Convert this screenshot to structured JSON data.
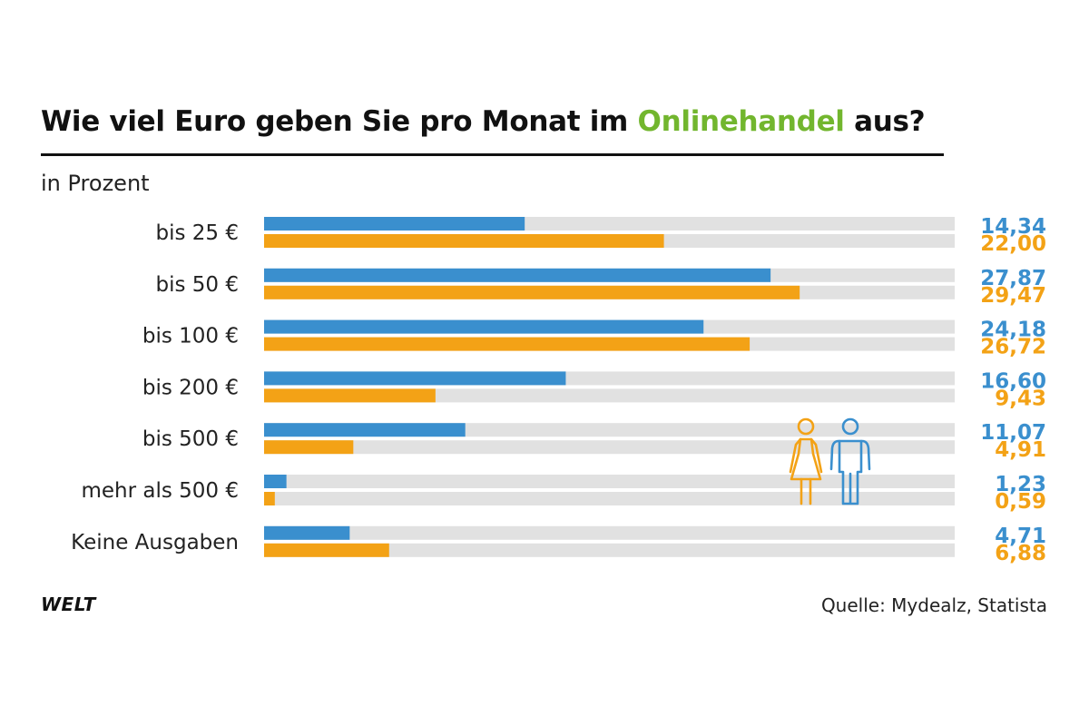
{
  "header": {
    "title_prefix": "Wie viel Euro geben Sie pro Monat im ",
    "title_highlight": "Onlinehandel",
    "title_suffix": " aus?",
    "subtitle": "in Prozent"
  },
  "colors": {
    "male": "#3a8fce",
    "female": "#f3a216",
    "track": "#e1e1e1",
    "highlight": "#72b62e"
  },
  "icons": [
    "woman-icon",
    "man-icon"
  ],
  "footer": {
    "logo": "WELT",
    "source": "Quelle: Mydealz, Statista"
  },
  "chart_data": {
    "type": "bar",
    "orientation": "horizontal",
    "title": "Wie viel Euro geben Sie pro Monat im Onlinehandel aus?",
    "subtitle": "in Prozent",
    "xlim": [
      0,
      38
    ],
    "grid": false,
    "categories": [
      "bis 25 €",
      "bis 50 €",
      "bis 100 €",
      "bis 200 €",
      "bis 500 €",
      "mehr als 500 €",
      "Keine Ausgaben"
    ],
    "series": [
      {
        "color": "#3a8fce",
        "values": [
          14.34,
          27.87,
          24.18,
          16.6,
          11.07,
          1.23,
          4.71
        ],
        "labels": [
          "14,34",
          "27,87",
          "24,18",
          "16,60",
          "11,07",
          "1,23",
          "4,71"
        ]
      },
      {
        "color": "#f3a216",
        "values": [
          22.0,
          29.47,
          26.72,
          9.43,
          4.91,
          0.59,
          6.88
        ],
        "labels": [
          "22,00",
          "29,47",
          "26,72",
          "9,43",
          "4,91",
          "0,59",
          "6,88"
        ]
      }
    ]
  }
}
